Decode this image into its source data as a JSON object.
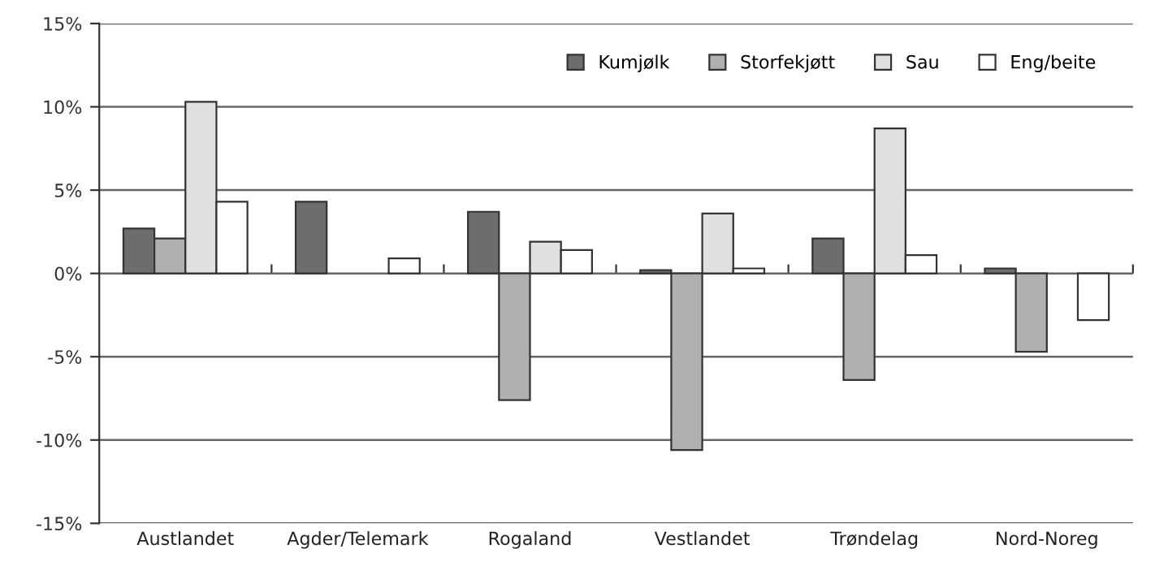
{
  "chart_data": {
    "type": "bar",
    "categories": [
      "Austlandet",
      "Agder/Telemark",
      "Rogaland",
      "Vestlandet",
      "Trøndelag",
      "Nord-Noreg"
    ],
    "series": [
      {
        "name": "Kumjølk",
        "color": "#6d6d6d",
        "values": [
          2.7,
          4.3,
          3.7,
          0.2,
          2.1,
          0.3
        ]
      },
      {
        "name": "Storfekjøtt",
        "color": "#b0b0b0",
        "values": [
          2.1,
          null,
          -7.6,
          -10.6,
          -6.4,
          -4.7
        ]
      },
      {
        "name": "Sau",
        "color": "#e0e0e0",
        "values": [
          10.3,
          null,
          1.9,
          3.6,
          8.7,
          null
        ]
      },
      {
        "name": "Eng/beite",
        "color": "#ffffff",
        "values": [
          4.3,
          0.9,
          1.4,
          0.3,
          1.1,
          -2.8
        ]
      }
    ],
    "ylim": [
      -15,
      15
    ],
    "yticks": [
      {
        "value": -15,
        "label": "-15%"
      },
      {
        "value": -10,
        "label": "-10%"
      },
      {
        "value": -5,
        "label": "-5%"
      },
      {
        "value": 0,
        "label": "0%"
      },
      {
        "value": 5,
        "label": "5%"
      },
      {
        "value": 10,
        "label": "10%"
      },
      {
        "value": 15,
        "label": "15%"
      }
    ],
    "grid": "y",
    "legend": "top right"
  }
}
